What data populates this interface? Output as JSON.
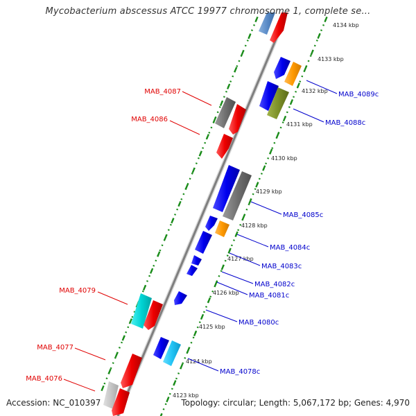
{
  "title": "Mycobacterium abscessus ATCC 19977 chromosome 1, complete se...",
  "footer": {
    "accession": "Accession: NC_010397",
    "summary": "Topology: circular; Length: 5,067,172 bp; Genes: 4,970"
  },
  "colors": {
    "backbone": "#7f7f7f",
    "scale_dots": "#1a8c1a",
    "left_label": "#e00000",
    "right_label": "#0000cc"
  },
  "ticks": [
    {
      "label": "4134 kbp"
    },
    {
      "label": "4133 kbp"
    },
    {
      "label": "4132 kbp"
    },
    {
      "label": "4131 kbp"
    },
    {
      "label": "4130 kbp"
    },
    {
      "label": "4129 kbp"
    },
    {
      "label": "4128 kbp"
    },
    {
      "label": "4127 kbp"
    },
    {
      "label": "4126 kbp"
    },
    {
      "label": "4125 kbp"
    },
    {
      "label": "4124 kbp"
    },
    {
      "label": "4123 kbp"
    }
  ],
  "gene_labels": {
    "left": [
      "MAB_4087",
      "MAB_4086",
      "MAB_4079",
      "MAB_4077",
      "MAB_4076"
    ],
    "right": [
      "MAB_4089c",
      "MAB_4088c",
      "MAB_4085c",
      "MAB_4084c",
      "MAB_4083c",
      "MAB_4082c",
      "MAB_4081c",
      "MAB_4080c",
      "MAB_4078c"
    ]
  },
  "gene_colors": [
    "red",
    "blue",
    "gray",
    "steel-blue",
    "orange",
    "olive-green",
    "cyan",
    "light-gray"
  ]
}
